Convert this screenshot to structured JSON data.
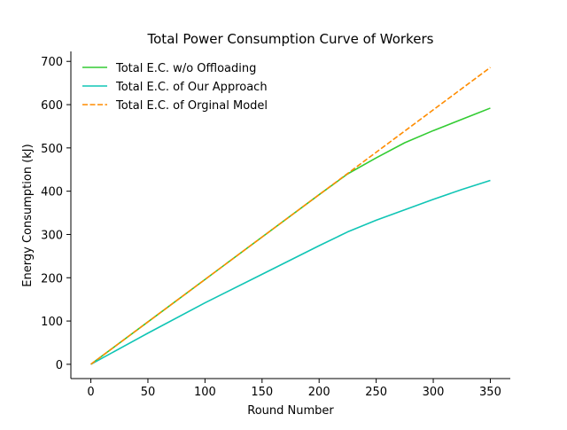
{
  "chart_data": {
    "type": "line",
    "title": "Total Power Consumption Curve of Workers",
    "xlabel": "Round Number",
    "ylabel": "Energy Consumption (kJ)",
    "xlim": [
      -17.5,
      367.5
    ],
    "ylim": [
      -33,
      723
    ],
    "xticks": [
      0,
      50,
      100,
      150,
      200,
      250,
      300,
      350
    ],
    "yticks": [
      0,
      100,
      200,
      300,
      400,
      500,
      600,
      700
    ],
    "grid": false,
    "legend_position": "top-left",
    "series": [
      {
        "name": "Total E.C. w/o Offloading",
        "color": "#33cc33",
        "linestyle": "solid",
        "x": [
          0,
          50,
          100,
          150,
          200,
          225,
          250,
          275,
          300,
          325,
          350
        ],
        "y": [
          0,
          98,
          196,
          294,
          392,
          440,
          477,
          512,
          540,
          566,
          592
        ]
      },
      {
        "name": "Total E.C. of Our Approach",
        "color": "#10c5b5",
        "linestyle": "solid",
        "x": [
          0,
          50,
          100,
          150,
          200,
          225,
          250,
          275,
          300,
          325,
          350
        ],
        "y": [
          0,
          72,
          142,
          208,
          274,
          306,
          333,
          357,
          381,
          404,
          425
        ]
      },
      {
        "name": "Total E.C. of Orginal Model",
        "color": "#ff8c00",
        "linestyle": "dashed",
        "x": [
          0,
          50,
          100,
          150,
          200,
          250,
          300,
          350
        ],
        "y": [
          0,
          98,
          196,
          294,
          392,
          490,
          588,
          686
        ]
      }
    ]
  }
}
